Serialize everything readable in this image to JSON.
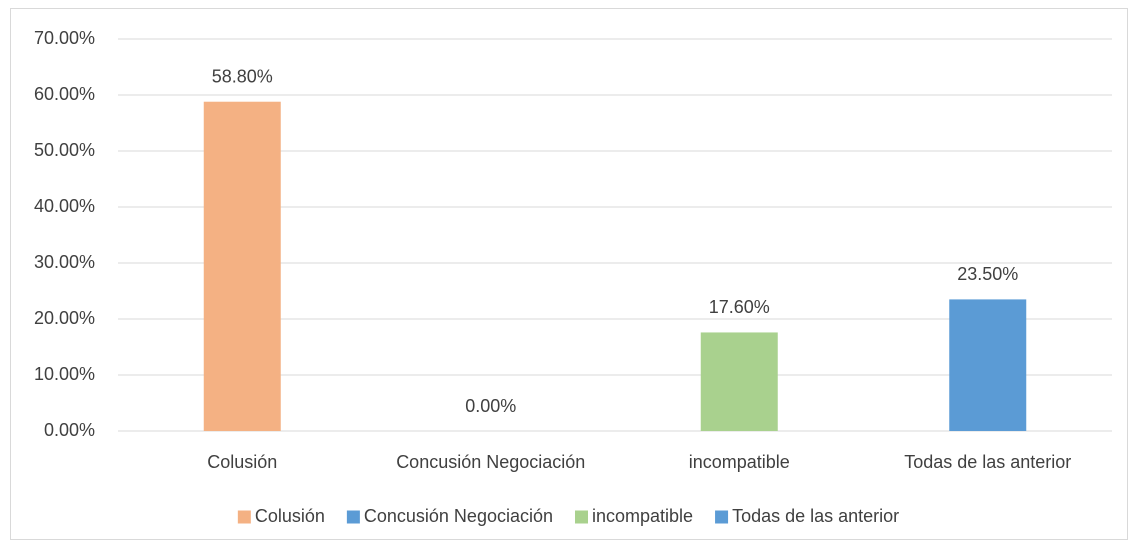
{
  "chart_data": {
    "type": "bar",
    "categories": [
      "Colusión",
      "Concusión Negociación",
      "incompatible",
      "Todas de las anterior"
    ],
    "values": [
      58.8,
      0,
      17.6,
      23.5
    ],
    "value_labels": [
      "58.80%",
      "0.00%",
      "17.60%",
      "23.50%"
    ],
    "colors": [
      "#F4B183",
      "#5B9BD5",
      "#A9D18E",
      "#5B9BD5"
    ],
    "ylim": [
      0,
      70
    ],
    "yticks": [
      {
        "value": 0,
        "label": "0.00%"
      },
      {
        "value": 10,
        "label": "10.00%"
      },
      {
        "value": 20,
        "label": "20.00%"
      },
      {
        "value": 30,
        "label": "30.00%"
      },
      {
        "value": 40,
        "label": "40.00%"
      },
      {
        "value": 50,
        "label": "50.00%"
      },
      {
        "value": 60,
        "label": "60.00%"
      },
      {
        "value": 70,
        "label": "70.00%"
      }
    ],
    "grid": true,
    "legend": "bottom"
  }
}
